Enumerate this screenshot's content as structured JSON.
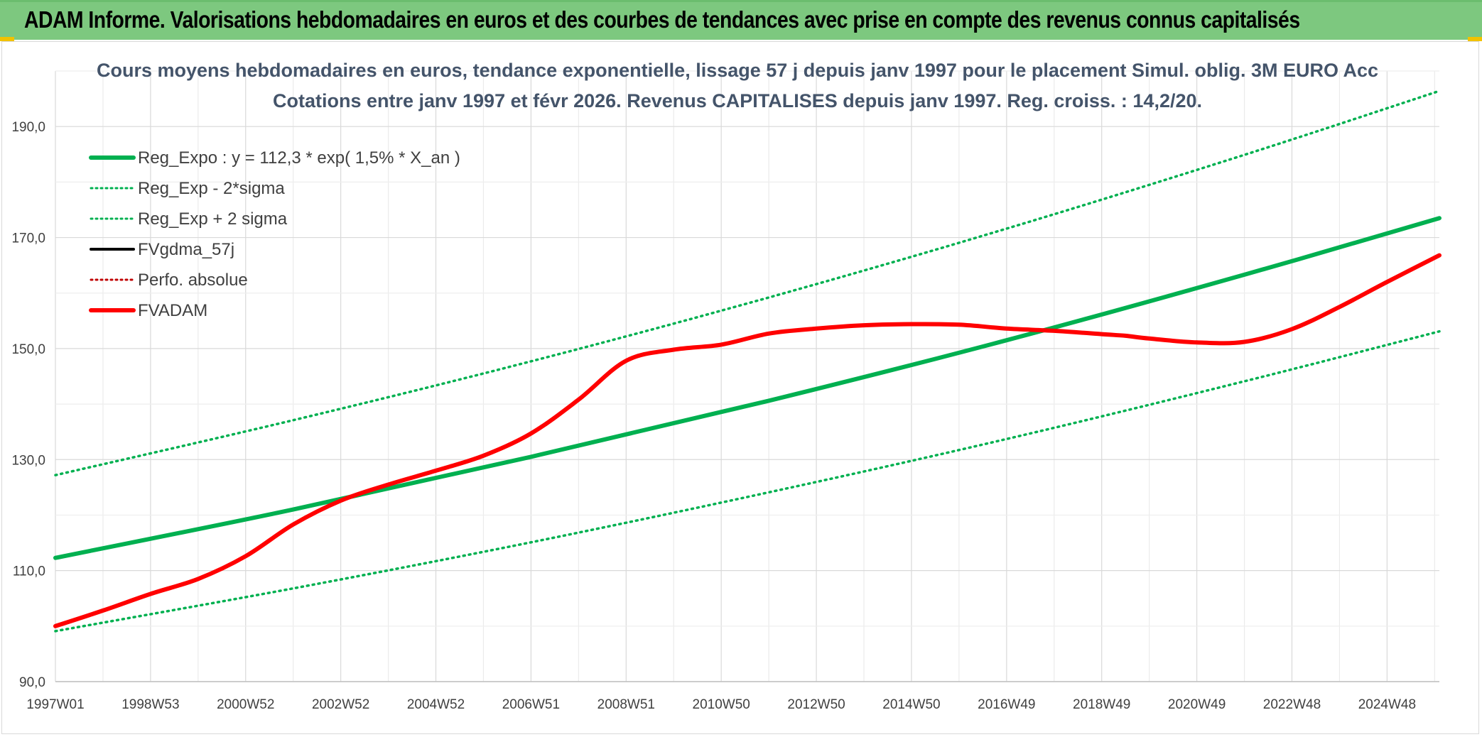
{
  "banner": {
    "title": "ADAM Informe. Valorisations hebdomadaires en euros et des courbes de tendances avec prise en compte des revenus connus capitalisés"
  },
  "chart_data": {
    "type": "line",
    "title_lines": [
      "Cours moyens hebdomadaires en euros, tendance exponentielle, lissage 57 j depuis janv 1997 pour le placement Simul. oblig. 3M EURO Acc",
      "Cotations entre janv 1997 et févr 2026. Revenus CAPITALISES depuis janv 1997. Reg. croiss. : 14,2/20."
    ],
    "x_range": [
      0,
      29.1
    ],
    "ylim": [
      90,
      200
    ],
    "yticks": [
      90,
      110,
      130,
      150,
      170,
      190
    ],
    "ytick_labels": [
      "90,0",
      "110,0",
      "130,0",
      "150,0",
      "170,0",
      "190,0"
    ],
    "xticks": [
      0,
      2,
      4,
      6,
      8,
      10,
      12,
      14,
      16,
      18,
      20,
      22,
      24,
      26,
      28
    ],
    "xtick_labels": [
      "1997W01",
      "1998W53",
      "2000W52",
      "2002W52",
      "2004W52",
      "2006W51",
      "2008W51",
      "2010W50",
      "2012W50",
      "2014W50",
      "2016W49",
      "2018W49",
      "2020W49",
      "2022W48",
      "2024W48"
    ],
    "grid": true,
    "legend_position": "top-left",
    "series": [
      {
        "name": "Reg_Expo : y = 112,3 * exp( 1,5% *  X_an )",
        "color": "#00b050",
        "style": "solid",
        "x": [
          0,
          5,
          10,
          15,
          20,
          25,
          29.1
        ],
        "values": [
          112.3,
          121.0,
          130.5,
          140.6,
          151.5,
          163.3,
          173.5
        ]
      },
      {
        "name": "Reg_Exp - 2*sigma",
        "color": "#00b050",
        "style": "dotted",
        "x": [
          0,
          5,
          10,
          15,
          20,
          25,
          29.1
        ],
        "values": [
          99.1,
          106.8,
          115.1,
          124.1,
          133.7,
          144.1,
          153.1
        ]
      },
      {
        "name": "Reg_Exp + 2 sigma",
        "color": "#00b050",
        "style": "dotted",
        "x": [
          0,
          5,
          10,
          15,
          20,
          25,
          29.1
        ],
        "values": [
          127.2,
          137.1,
          147.7,
          159.2,
          171.6,
          184.9,
          196.4
        ]
      },
      {
        "name": "FVgdma_57j",
        "color": "#000000",
        "style": "solid",
        "x": [],
        "values": []
      },
      {
        "name": "Perfo. absolue",
        "color": "#c00000",
        "style": "dotted",
        "x": [],
        "values": []
      },
      {
        "name": "FVADAM",
        "color": "#ff0000",
        "style": "solid",
        "x": [
          0,
          1,
          2,
          3,
          4,
          5,
          6,
          7,
          8,
          9,
          10,
          11,
          12,
          13,
          14,
          15,
          16,
          17,
          18,
          19,
          20,
          21,
          22,
          22.5,
          23,
          24,
          25,
          26,
          27,
          28,
          29.1
        ],
        "values": [
          100.0,
          102.8,
          105.8,
          108.5,
          112.6,
          118.3,
          122.6,
          125.5,
          128.0,
          130.7,
          134.7,
          140.8,
          147.8,
          149.8,
          150.7,
          152.7,
          153.6,
          154.2,
          154.4,
          154.3,
          153.6,
          153.2,
          152.6,
          152.3,
          151.8,
          151.1,
          151.2,
          153.5,
          157.5,
          162.0,
          166.8
        ]
      }
    ]
  }
}
